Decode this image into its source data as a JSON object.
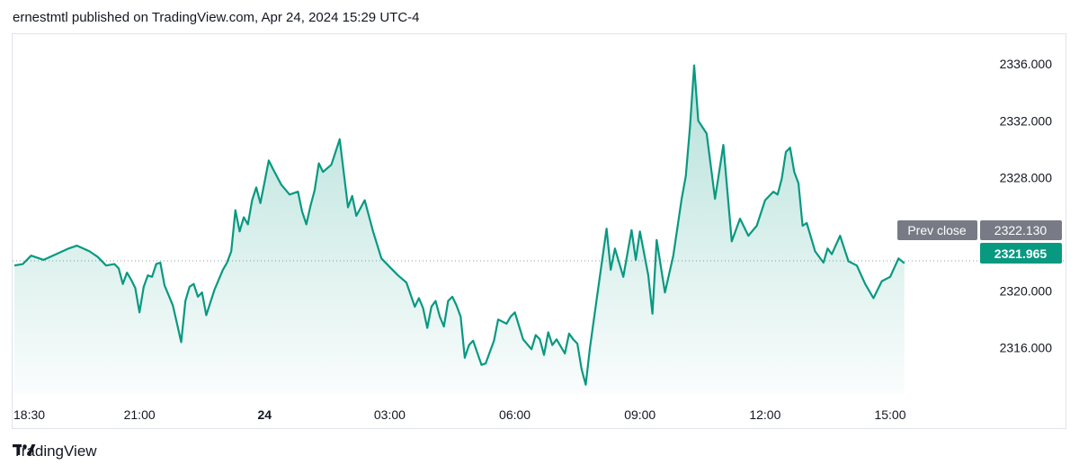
{
  "header": {
    "text": "ernestmtl published on TradingView.com, Apr 24, 2024 15:29 UTC-4"
  },
  "footer": {
    "brand": "TradingView",
    "logo_icon": "tradingview-logo-icon"
  },
  "colors": {
    "line": "#089981",
    "fill": "#089981",
    "prev_close_bg": "#787b86",
    "last_bg": "#089981"
  },
  "chart_data": {
    "type": "area",
    "x_ticks": [
      {
        "label": "18:30",
        "t": 0
      },
      {
        "label": "21:00",
        "t": 150
      },
      {
        "label": "24",
        "t": 300,
        "bold": true
      },
      {
        "label": "03:00",
        "t": 450
      },
      {
        "label": "06:00",
        "t": 600
      },
      {
        "label": "09:00",
        "t": 750
      },
      {
        "label": "12:00",
        "t": 900
      },
      {
        "label": "15:00",
        "t": 1050
      }
    ],
    "y_ticks": [
      "2336.000",
      "2332.000",
      "2328.000",
      "2324.000",
      "2320.000",
      "2316.000"
    ],
    "ylim": [
      2312.75,
      2338.1
    ],
    "prev_close": {
      "label": "Prev close",
      "value": 2322.13,
      "value_label": "2322.130"
    },
    "last": {
      "value": 2321.965,
      "value_label": "2321.965"
    },
    "series": [
      {
        "x": [
          0,
          10,
          20,
          35,
          50,
          65,
          75,
          90,
          100,
          110,
          120,
          125,
          130,
          135,
          140,
          145,
          150,
          155,
          160,
          165,
          170,
          175,
          180,
          190,
          195,
          200,
          205,
          210,
          215,
          220,
          225,
          230,
          240,
          250,
          255,
          260,
          265,
          270,
          275,
          280,
          285,
          290,
          295,
          300,
          305,
          310,
          320,
          330,
          340,
          345,
          350,
          355,
          360,
          365,
          370,
          380,
          390,
          400,
          405,
          410,
          420,
          430,
          440,
          450,
          460,
          470,
          480,
          485,
          490,
          495,
          500,
          505,
          510,
          515,
          520,
          525,
          530,
          535,
          540,
          545,
          550,
          560,
          565,
          570,
          575,
          580,
          590,
          595,
          600,
          610,
          620,
          625,
          630,
          635,
          640,
          645,
          650,
          660,
          665,
          670,
          675,
          680,
          685,
          690,
          700,
          710,
          715,
          720,
          730,
          740,
          745,
          750,
          760,
          765,
          770,
          780,
          790,
          800,
          805,
          810,
          815,
          820,
          830,
          840,
          850,
          860,
          870,
          880,
          890,
          900,
          910,
          915,
          920,
          925,
          930,
          935,
          940,
          945,
          950,
          960,
          970,
          975,
          980,
          990,
          1000,
          1010,
          1020,
          1030,
          1040,
          1050,
          1060,
          1067
        ],
        "values": [
          2321.8,
          2321.9,
          2322.5,
          2322.2,
          2322.6,
          2323.0,
          2323.2,
          2322.8,
          2322.4,
          2321.8,
          2321.9,
          2321.6,
          2320.5,
          2321.3,
          2320.8,
          2320.2,
          2318.5,
          2320.3,
          2321.1,
          2321.0,
          2321.9,
          2322.0,
          2320.4,
          2319.0,
          2317.7,
          2316.4,
          2319.3,
          2320.3,
          2320.5,
          2319.6,
          2319.9,
          2318.3,
          2320.1,
          2321.5,
          2322.0,
          2322.8,
          2325.7,
          2324.2,
          2325.2,
          2324.7,
          2326.4,
          2327.3,
          2326.2,
          2327.7,
          2329.2,
          2328.6,
          2327.5,
          2326.8,
          2327.0,
          2325.6,
          2324.7,
          2326.0,
          2327.1,
          2329.0,
          2328.4,
          2328.9,
          2330.7,
          2325.9,
          2326.7,
          2325.3,
          2326.4,
          2324.2,
          2322.3,
          2321.7,
          2321.1,
          2320.6,
          2318.9,
          2319.5,
          2318.8,
          2317.4,
          2318.9,
          2319.3,
          2318.2,
          2317.5,
          2319.3,
          2319.6,
          2319.0,
          2318.2,
          2315.3,
          2316.2,
          2316.5,
          2314.8,
          2314.9,
          2315.7,
          2316.5,
          2318.0,
          2317.7,
          2318.2,
          2318.5,
          2316.6,
          2315.9,
          2316.9,
          2316.6,
          2315.5,
          2317.1,
          2316.2,
          2316.6,
          2315.6,
          2317.0,
          2316.6,
          2316.3,
          2314.5,
          2313.4,
          2316.0,
          2320.2,
          2324.4,
          2321.5,
          2323.0,
          2321.0,
          2324.3,
          2322.2,
          2324.2,
          2321.1,
          2318.4,
          2323.6,
          2319.9,
          2322.5,
          2326.5,
          2328.1,
          2331.6,
          2335.9,
          2332.0,
          2331.1,
          2326.5,
          2330.3,
          2323.5,
          2325.1,
          2323.9,
          2324.6,
          2326.4,
          2327.0,
          2326.8,
          2327.9,
          2329.8,
          2330.1,
          2328.4,
          2327.6,
          2324.6,
          2324.8,
          2322.8,
          2322.0,
          2323.0,
          2322.6,
          2323.9,
          2322.1,
          2321.8,
          2320.5,
          2319.5,
          2320.7,
          2321.0,
          2322.3,
          2321.965
        ]
      }
    ]
  }
}
